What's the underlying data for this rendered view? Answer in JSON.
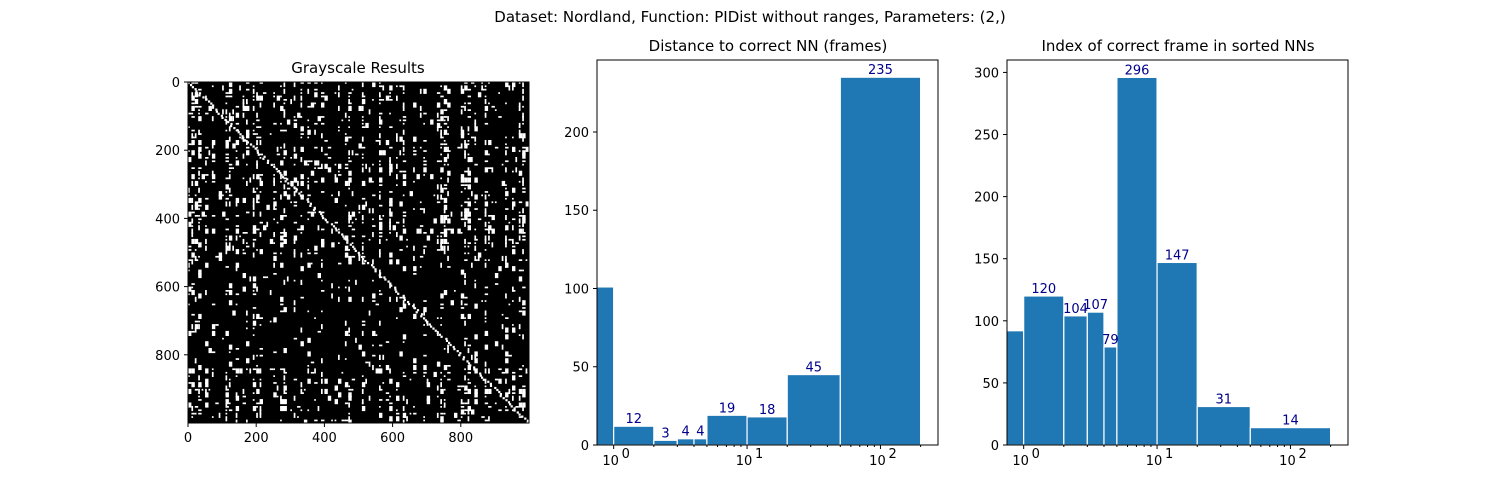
{
  "suptitle": "Dataset:  Nordland,  Function:  PIDist without ranges, Parameters: (2,)",
  "chart_data": [
    {
      "type": "heatmap",
      "title": "Grayscale Results",
      "xlim": [
        0,
        1000
      ],
      "ylim": [
        1000,
        0
      ],
      "x_ticks": [
        0,
        200,
        400,
        600,
        800
      ],
      "y_ticks": [
        0,
        200,
        400,
        600,
        800
      ],
      "colors": {
        "background": "#000000",
        "match": "#ffffff"
      },
      "description_values": {
        "size": 1000,
        "pattern": "binary match matrix with bright main diagonal"
      }
    },
    {
      "type": "bar",
      "title": "Distance to correct NN (frames)",
      "xscale": "log",
      "xlim": [
        0.75,
        270
      ],
      "ylim": [
        0,
        246
      ],
      "y_ticks": [
        0,
        50,
        100,
        150,
        200
      ],
      "x_ticks": [
        {
          "value": 1,
          "base": "10",
          "exp": "0"
        },
        {
          "value": 10,
          "base": "10",
          "exp": "1"
        },
        {
          "value": 100,
          "base": "10",
          "exp": "2"
        }
      ],
      "bins": [
        {
          "x0": 0.5,
          "x1": 1,
          "value": 101,
          "label": ""
        },
        {
          "x0": 1,
          "x1": 2,
          "value": 12,
          "label": "12"
        },
        {
          "x0": 2,
          "x1": 3,
          "value": 3,
          "label": "3"
        },
        {
          "x0": 3,
          "x1": 4,
          "value": 4,
          "label": "4"
        },
        {
          "x0": 4,
          "x1": 5,
          "value": 4,
          "label": "4"
        },
        {
          "x0": 5,
          "x1": 10,
          "value": 19,
          "label": "19"
        },
        {
          "x0": 10,
          "x1": 20,
          "value": 18,
          "label": "18"
        },
        {
          "x0": 20,
          "x1": 50,
          "value": 45,
          "label": "45"
        },
        {
          "x0": 50,
          "x1": 200,
          "value": 235,
          "label": "235"
        }
      ]
    },
    {
      "type": "bar",
      "title": "Index of correct frame in sorted NNs",
      "xscale": "log",
      "xlim": [
        0.75,
        270
      ],
      "ylim": [
        0,
        310
      ],
      "y_ticks": [
        0,
        50,
        100,
        150,
        200,
        250,
        300
      ],
      "x_ticks": [
        {
          "value": 1,
          "base": "10",
          "exp": "0"
        },
        {
          "value": 10,
          "base": "10",
          "exp": "1"
        },
        {
          "value": 100,
          "base": "10",
          "exp": "2"
        }
      ],
      "bins": [
        {
          "x0": 0.5,
          "x1": 1,
          "value": 92,
          "label": ""
        },
        {
          "x0": 1,
          "x1": 2,
          "value": 120,
          "label": "120"
        },
        {
          "x0": 2,
          "x1": 3,
          "value": 104,
          "label": "104"
        },
        {
          "x0": 3,
          "x1": 4,
          "value": 107,
          "label": "107"
        },
        {
          "x0": 4,
          "x1": 5,
          "value": 79,
          "label": "79"
        },
        {
          "x0": 5,
          "x1": 10,
          "value": 296,
          "label": "296"
        },
        {
          "x0": 10,
          "x1": 20,
          "value": 147,
          "label": "147"
        },
        {
          "x0": 20,
          "x1": 50,
          "value": 31,
          "label": "31"
        },
        {
          "x0": 50,
          "x1": 200,
          "value": 14,
          "label": "14"
        }
      ]
    }
  ]
}
